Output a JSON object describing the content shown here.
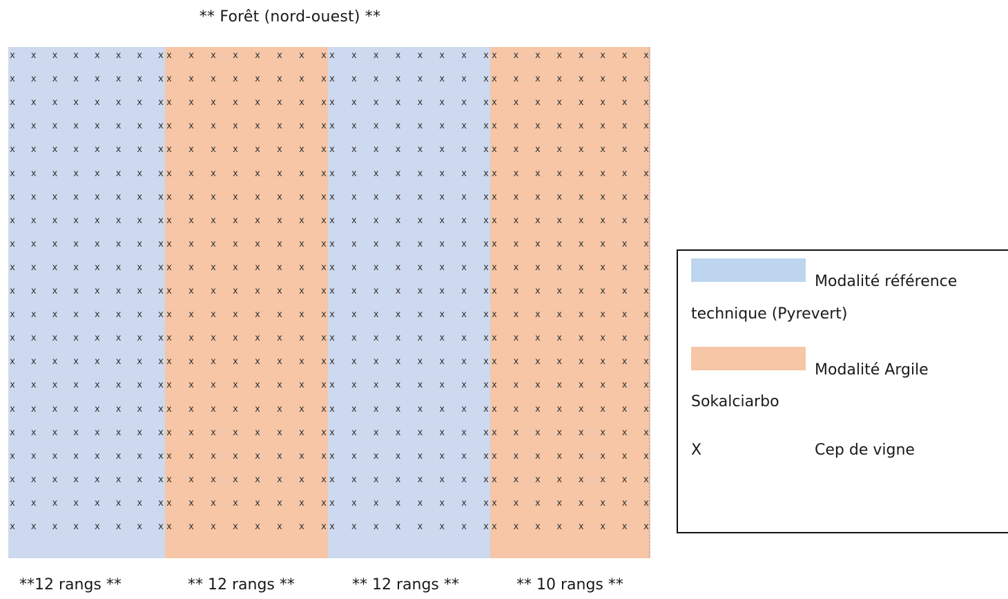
{
  "diagram": {
    "top_label": "** Forêt (nord-ouest) **",
    "strips": [
      {
        "modality": "reference",
        "rows": 12,
        "color": "#cdd9ee",
        "bottom_label": "**12 rangs **"
      },
      {
        "modality": "argile",
        "rows": 12,
        "color": "#f6c6a7",
        "bottom_label": "** 12 rangs **"
      },
      {
        "modality": "reference",
        "rows": 12,
        "color": "#cdd9ee",
        "bottom_label": "** 12 rangs **"
      },
      {
        "modality": "argile",
        "rows": 10,
        "color": "#f6c6a7",
        "bottom_label": "** 10 rangs **"
      }
    ],
    "vines_per_row": 21,
    "vine_mark": "x"
  },
  "legend": {
    "reference": {
      "color": "#bdd6ee",
      "label_line1": "Modalité référence",
      "label_line2": "technique (Pyrevert)"
    },
    "argile": {
      "color": "#f6c6a7",
      "label_line1": "Modalité Argile",
      "label_line2": "Sokalciarbo"
    },
    "vine": {
      "symbol": "X",
      "label": "Cep de vigne"
    }
  }
}
